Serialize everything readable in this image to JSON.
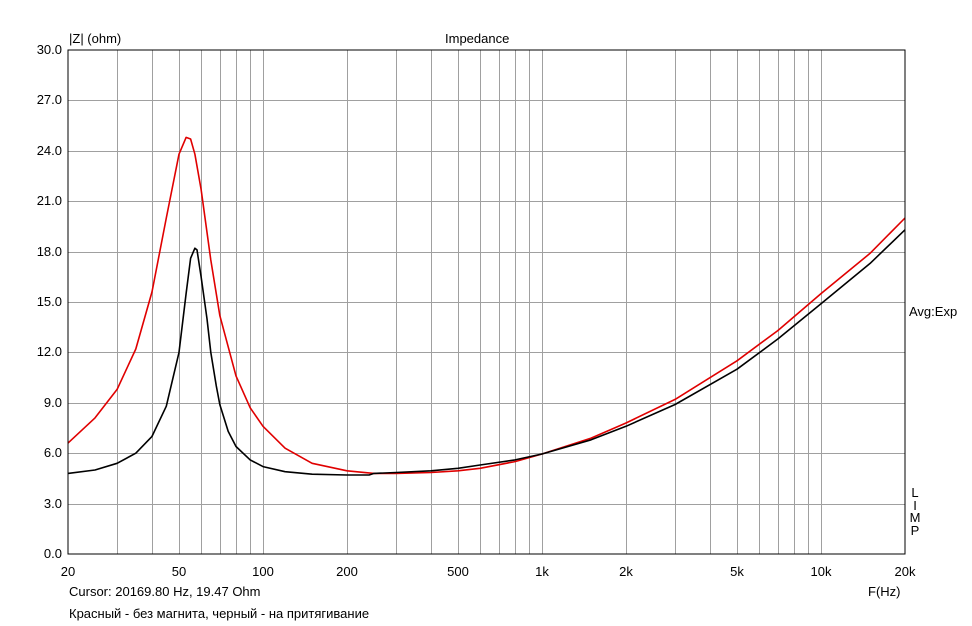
{
  "chart_data": {
    "type": "line",
    "title": "Impedance",
    "ylabel": "|Z| (ohm)",
    "xlabel": "F(Hz)",
    "xscale": "log",
    "xlim": [
      20,
      20000
    ],
    "ylim": [
      0,
      30
    ],
    "y_ticks": [
      "30.0",
      "27.0",
      "24.0",
      "21.0",
      "18.0",
      "15.0",
      "12.0",
      "9.0",
      "6.0",
      "3.0",
      "0.0"
    ],
    "x_ticks": [
      {
        "value": 20,
        "label": "20"
      },
      {
        "value": 50,
        "label": "50"
      },
      {
        "value": 100,
        "label": "100"
      },
      {
        "value": 200,
        "label": "200"
      },
      {
        "value": 500,
        "label": "500"
      },
      {
        "value": 1000,
        "label": "1k"
      },
      {
        "value": 2000,
        "label": "2k"
      },
      {
        "value": 5000,
        "label": "5k"
      },
      {
        "value": 10000,
        "label": "10k"
      },
      {
        "value": 20000,
        "label": "20k"
      }
    ],
    "grid": true,
    "right_label": "Avg:Exp",
    "right_vertical_label": "LIMP",
    "cursor_text": "Cursor: 20169.80 Hz, 19.47 Ohm",
    "caption": "Красный - без магнита, черный - на притягивание",
    "series": [
      {
        "color": "#e00000",
        "x": [
          20,
          25,
          30,
          35,
          40,
          45,
          50,
          53,
          55,
          57,
          60,
          65,
          70,
          80,
          90,
          100,
          120,
          150,
          200,
          250,
          300,
          400,
          500,
          600,
          800,
          1000,
          1500,
          2000,
          3000,
          5000,
          7000,
          10000,
          15000,
          20000
        ],
        "y": [
          6.6,
          8.1,
          9.8,
          12.2,
          15.6,
          20.0,
          23.8,
          24.8,
          24.7,
          23.8,
          21.7,
          17.5,
          14.2,
          10.6,
          8.7,
          7.6,
          6.3,
          5.4,
          4.95,
          4.8,
          4.8,
          4.85,
          4.95,
          5.1,
          5.5,
          5.95,
          6.9,
          7.8,
          9.2,
          11.5,
          13.3,
          15.5,
          17.9,
          20.0
        ]
      },
      {
        "color": "#000000",
        "x": [
          20,
          25,
          30,
          35,
          40,
          45,
          50,
          53,
          55,
          57,
          58,
          60,
          63,
          65,
          68,
          70,
          75,
          80,
          90,
          100,
          120,
          150,
          200,
          240,
          250,
          300,
          400,
          500,
          600,
          800,
          1000,
          1500,
          2000,
          3000,
          5000,
          7000,
          10000,
          15000,
          20000
        ],
        "y": [
          4.8,
          5.0,
          5.4,
          6.0,
          7.0,
          8.8,
          12.0,
          15.5,
          17.6,
          18.2,
          18.1,
          16.5,
          14.0,
          12.0,
          10.0,
          8.9,
          7.3,
          6.4,
          5.6,
          5.2,
          4.9,
          4.75,
          4.7,
          4.7,
          4.8,
          4.85,
          4.95,
          5.1,
          5.3,
          5.6,
          5.95,
          6.8,
          7.6,
          8.9,
          11.0,
          12.8,
          14.9,
          17.3,
          19.3
        ]
      }
    ]
  }
}
